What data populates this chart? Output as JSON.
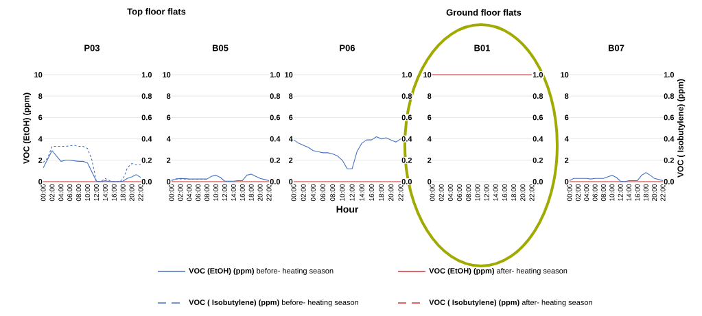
{
  "chart_data": [
    {
      "type": "line",
      "title": "P03",
      "annotations": [
        "Top floor flats"
      ],
      "ylabel": "VOC (EtOH) (ppm)",
      "legend": "bottom",
      "grid": "y",
      "xlim": [
        0,
        22
      ],
      "xticks": [
        {
          "value": 0,
          "label": "00:00"
        },
        {
          "value": 2,
          "label": "02:00"
        },
        {
          "value": 4,
          "label": "04:00"
        },
        {
          "value": 6,
          "label": "06:00"
        },
        {
          "value": 8,
          "label": "08:00"
        },
        {
          "value": 10,
          "label": "10:00"
        },
        {
          "value": 12,
          "label": "12:00"
        },
        {
          "value": 14,
          "label": "14:00"
        },
        {
          "value": 16,
          "label": "16:00"
        },
        {
          "value": 18,
          "label": "18:00"
        },
        {
          "value": 20,
          "label": "20:00"
        },
        {
          "value": 22,
          "label": "22:00"
        }
      ],
      "ylim": [
        0,
        10
      ],
      "yticks": [
        0,
        2,
        4,
        6,
        8,
        10
      ],
      "y2lim": [
        0,
        1
      ],
      "y2ticks": [
        {
          "value": 0,
          "label": "0.0"
        },
        {
          "value": 0.2,
          "label": "0.2"
        },
        {
          "value": 0.4,
          "label": "0.4"
        },
        {
          "value": 0.6,
          "label": "0.6"
        },
        {
          "value": 0.8,
          "label": "0.8"
        },
        {
          "value": 1,
          "label": "1.0"
        }
      ],
      "series": [
        {
          "name": "**VOC (EtOH) (ppm)** before- heating season",
          "color": "#4472c4",
          "line_style": "solid",
          "x": [
            0,
            1,
            2,
            3,
            4,
            5,
            6,
            7,
            8,
            9,
            10,
            11,
            12,
            13,
            14,
            15,
            16,
            17,
            18,
            19,
            20,
            21,
            22
          ],
          "values": [
            1.3,
            2.1,
            2.9,
            2.4,
            1.9,
            2.0,
            2.0,
            1.95,
            1.9,
            1.9,
            1.75,
            0.9,
            0.05,
            0.0,
            0.1,
            0.0,
            0.0,
            0.0,
            0.05,
            0.3,
            0.45,
            0.65,
            0.4
          ]
        },
        {
          "name": "**VOC ( Isobutylene) (ppm)** before- heating season",
          "color": "#4472c4",
          "line_style": "dashed",
          "axis": "y2",
          "x": [
            0,
            1,
            2,
            3,
            4,
            5,
            6,
            7,
            8,
            9,
            10,
            11,
            12,
            13,
            14,
            15,
            16,
            17,
            18,
            19,
            20,
            21,
            22
          ],
          "values": [
            0.18,
            0.22,
            0.33,
            0.33,
            0.33,
            0.33,
            0.335,
            0.34,
            0.33,
            0.33,
            0.31,
            0.2,
            0.0,
            0.0,
            0.03,
            0.01,
            0.0,
            0.0,
            0.02,
            0.13,
            0.17,
            0.16,
            0.16
          ]
        },
        {
          "name": "**VOC (EtOH) (ppm)** after- heating season",
          "color": "#e03030",
          "line_style": "solid",
          "x": [
            0,
            22
          ],
          "values": [
            0,
            0
          ]
        },
        {
          "name": "**VOC ( Isobutylene) (ppm)** after- heating season",
          "color": "#e03030",
          "line_style": "dashed",
          "axis": "y2",
          "values": [
            null,
            null
          ]
        }
      ]
    },
    {
      "type": "line",
      "title": "B05",
      "grid": "y",
      "xlim": [
        0,
        22
      ],
      "xticks": [
        {
          "value": 0,
          "label": "00:00"
        },
        {
          "value": 2,
          "label": "02:00"
        },
        {
          "value": 4,
          "label": "04:00"
        },
        {
          "value": 6,
          "label": "06:00"
        },
        {
          "value": 8,
          "label": "08:00"
        },
        {
          "value": 10,
          "label": "10:00"
        },
        {
          "value": 12,
          "label": "12:00"
        },
        {
          "value": 14,
          "label": "14:00"
        },
        {
          "value": 16,
          "label": "16:00"
        },
        {
          "value": 18,
          "label": "18:00"
        },
        {
          "value": 20,
          "label": "20:00"
        },
        {
          "value": 22,
          "label": "22:00"
        }
      ],
      "ylim": [
        0,
        10
      ],
      "yticks": [
        0,
        2,
        4,
        6,
        8,
        10
      ],
      "y2lim": [
        0,
        1
      ],
      "y2ticks": [
        {
          "value": 0,
          "label": "0.0"
        },
        {
          "value": 0.2,
          "label": "0.2"
        },
        {
          "value": 0.4,
          "label": "0.4"
        },
        {
          "value": 0.6,
          "label": "0.6"
        },
        {
          "value": 0.8,
          "label": "0.8"
        },
        {
          "value": 1,
          "label": "1.0"
        }
      ],
      "series": [
        {
          "color": "#4472c4",
          "line_style": "solid",
          "x": [
            0,
            1,
            2,
            3,
            4,
            5,
            6,
            7,
            8,
            9,
            10,
            11,
            12,
            13,
            14,
            15,
            16,
            17,
            18,
            19,
            20,
            21,
            22
          ],
          "values": [
            0.1,
            0.25,
            0.3,
            0.28,
            0.25,
            0.25,
            0.25,
            0.25,
            0.25,
            0.5,
            0.6,
            0.4,
            0.05,
            0.05,
            0.05,
            0.1,
            0.1,
            0.6,
            0.7,
            0.5,
            0.3,
            0.2,
            0.1
          ]
        },
        {
          "color": "#4472c4",
          "line_style": "dashed",
          "axis": "y2",
          "x": [
            0,
            1,
            2,
            3,
            4,
            5,
            6,
            7,
            8
          ],
          "values": [
            0.015,
            0.025,
            0.025,
            0.025,
            0.022,
            0.022,
            0.022,
            0.022,
            0.022
          ]
        },
        {
          "color": "#e03030",
          "line_style": "solid",
          "x": [
            0,
            22
          ],
          "values": [
            0,
            0
          ]
        }
      ]
    },
    {
      "type": "line",
      "title": "P06",
      "xlabel": "Hour",
      "grid": "y",
      "xlim": [
        0,
        22
      ],
      "xticks": [
        {
          "value": 0,
          "label": "00:00"
        },
        {
          "value": 2,
          "label": "02:00"
        },
        {
          "value": 4,
          "label": "04:00"
        },
        {
          "value": 6,
          "label": "06:00"
        },
        {
          "value": 8,
          "label": "08:00"
        },
        {
          "value": 10,
          "label": "10:00"
        },
        {
          "value": 12,
          "label": "12:00"
        },
        {
          "value": 14,
          "label": "14:00"
        },
        {
          "value": 16,
          "label": "16:00"
        },
        {
          "value": 18,
          "label": "18:00"
        },
        {
          "value": 20,
          "label": "20:00"
        },
        {
          "value": 22,
          "label": "22:00"
        }
      ],
      "ylim": [
        0,
        10
      ],
      "yticks": [
        0,
        2,
        4,
        6,
        8,
        10
      ],
      "y2lim": [
        0,
        1
      ],
      "y2ticks": [
        {
          "value": 0,
          "label": "0.0"
        },
        {
          "value": 0.2,
          "label": "0.2"
        },
        {
          "value": 0.4,
          "label": "0.4"
        },
        {
          "value": 0.6,
          "label": "0.6"
        },
        {
          "value": 0.8,
          "label": "0.8"
        },
        {
          "value": 1,
          "label": "1.0"
        }
      ],
      "series": [
        {
          "color": "#4472c4",
          "line_style": "solid",
          "x": [
            0,
            1,
            2,
            3,
            4,
            5,
            6,
            7,
            8,
            9,
            10,
            11,
            12,
            13,
            14,
            15,
            16,
            17,
            18,
            19,
            20,
            21,
            22
          ],
          "values": [
            3.9,
            3.6,
            3.4,
            3.2,
            2.9,
            2.8,
            2.7,
            2.7,
            2.6,
            2.4,
            2.0,
            1.2,
            1.2,
            2.8,
            3.6,
            3.9,
            3.9,
            4.2,
            4.0,
            4.1,
            3.9,
            3.7,
            4.0
          ]
        },
        {
          "color": "#e03030",
          "line_style": "solid",
          "x": [
            0,
            22
          ],
          "values": [
            0,
            0
          ]
        }
      ]
    },
    {
      "type": "line",
      "title": "B01",
      "annotations": [
        "Ground floor flats"
      ],
      "grid": "y",
      "xlim": [
        0,
        22
      ],
      "xticks": [
        {
          "value": 0,
          "label": "00:00"
        },
        {
          "value": 2,
          "label": "02:00"
        },
        {
          "value": 4,
          "label": "04:00"
        },
        {
          "value": 6,
          "label": "06:00"
        },
        {
          "value": 8,
          "label": "08:00"
        },
        {
          "value": 10,
          "label": "10:00"
        },
        {
          "value": 12,
          "label": "12:00"
        },
        {
          "value": 14,
          "label": "14:00"
        },
        {
          "value": 16,
          "label": "16:00"
        },
        {
          "value": 18,
          "label": "18:00"
        },
        {
          "value": 20,
          "label": "20:00"
        },
        {
          "value": 22,
          "label": "22:00"
        }
      ],
      "ylim": [
        0,
        10
      ],
      "yticks": [
        0,
        2,
        4,
        6,
        8,
        10
      ],
      "y2lim": [
        0,
        1
      ],
      "y2ticks": [
        {
          "value": 0,
          "label": "0.0"
        },
        {
          "value": 0.2,
          "label": "0.2"
        },
        {
          "value": 0.4,
          "label": "0.4"
        },
        {
          "value": 0.6,
          "label": "0.6"
        },
        {
          "value": 0.8,
          "label": "0.8"
        },
        {
          "value": 1,
          "label": "1.0"
        }
      ],
      "series": [
        {
          "color": "#e03030",
          "line_style": "solid",
          "x": [
            0,
            22
          ],
          "values": [
            10,
            10
          ]
        }
      ]
    },
    {
      "type": "line",
      "title": "B07",
      "y2label": "VOC ( Isobutylene) (ppm)",
      "grid": "y",
      "xlim": [
        0,
        22
      ],
      "xticks": [
        {
          "value": 0,
          "label": "00:00"
        },
        {
          "value": 2,
          "label": "02:00"
        },
        {
          "value": 4,
          "label": "04:00"
        },
        {
          "value": 6,
          "label": "06:00"
        },
        {
          "value": 8,
          "label": "08:00"
        },
        {
          "value": 10,
          "label": "10:00"
        },
        {
          "value": 12,
          "label": "12:00"
        },
        {
          "value": 14,
          "label": "14:00"
        },
        {
          "value": 16,
          "label": "16:00"
        },
        {
          "value": 18,
          "label": "18:00"
        },
        {
          "value": 20,
          "label": "20:00"
        },
        {
          "value": 22,
          "label": "22:00"
        }
      ],
      "ylim": [
        0,
        10
      ],
      "yticks": [
        0,
        2,
        4,
        6,
        8,
        10
      ],
      "y2lim": [
        0,
        1
      ],
      "y2ticks": [
        {
          "value": 0,
          "label": "0.0"
        },
        {
          "value": 0.2,
          "label": "0.2"
        },
        {
          "value": 0.4,
          "label": "0.4"
        },
        {
          "value": 0.6,
          "label": "0.6"
        },
        {
          "value": 0.8,
          "label": "0.8"
        },
        {
          "value": 1,
          "label": "1.0"
        }
      ],
      "series": [
        {
          "color": "#4472c4",
          "line_style": "solid",
          "x": [
            0,
            1,
            2,
            3,
            4,
            5,
            6,
            7,
            8,
            9,
            10,
            11,
            12,
            13,
            14,
            15,
            16,
            17,
            18,
            19,
            20,
            21,
            22
          ],
          "values": [
            0.1,
            0.3,
            0.3,
            0.3,
            0.3,
            0.25,
            0.3,
            0.3,
            0.3,
            0.45,
            0.6,
            0.4,
            0.05,
            0.0,
            0.1,
            0.1,
            0.1,
            0.6,
            0.85,
            0.6,
            0.3,
            0.2,
            0.1
          ]
        },
        {
          "color": "#e03030",
          "line_style": "solid",
          "x": [
            0,
            22
          ],
          "values": [
            0,
            0
          ]
        }
      ]
    }
  ]
}
